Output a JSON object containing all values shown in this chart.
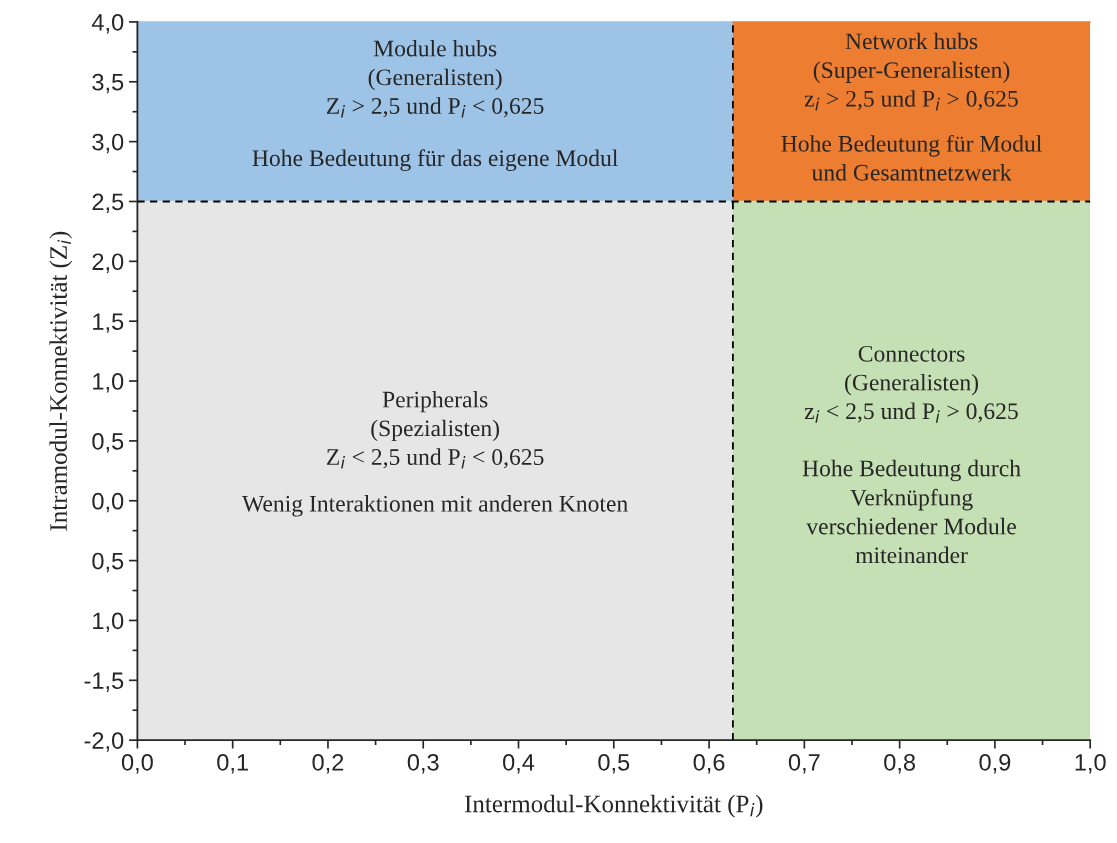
{
  "chart_data": {
    "type": "line",
    "xlabel": "Intermodul-Konnektivität (P$_{i}$)",
    "ylabel": "Intramodul-Konnektivität (Z$_{i}$)",
    "xlim": [
      0,
      1.0
    ],
    "ylim": [
      -2.0,
      4.0
    ],
    "xticks": [
      {
        "value": 0,
        "label": "0,0"
      },
      {
        "value": 0.1,
        "label": "0,1"
      },
      {
        "value": 0.2,
        "label": "0,2"
      },
      {
        "value": 0.3,
        "label": "0,3"
      },
      {
        "value": 0.4,
        "label": "0,4"
      },
      {
        "value": 0.5,
        "label": "0,5"
      },
      {
        "value": 0.6,
        "label": "0,6"
      },
      {
        "value": 0.7,
        "label": "0,7"
      },
      {
        "value": 0.8,
        "label": "0,8"
      },
      {
        "value": 0.9,
        "label": "0,9"
      },
      {
        "value": 1.0,
        "label": "1,0"
      }
    ],
    "yticks": [
      {
        "value": -2.0,
        "label": "-2,0"
      },
      {
        "value": -1.5,
        "label": "-1,5"
      },
      {
        "value": -1.0,
        "label": "1,0"
      },
      {
        "value": -0.5,
        "label": "0,5"
      },
      {
        "value": 0,
        "label": "0,0"
      },
      {
        "value": 0.5,
        "label": "0,5"
      },
      {
        "value": 1.0,
        "label": "1,0"
      },
      {
        "value": 1.5,
        "label": "1,5"
      },
      {
        "value": 2.0,
        "label": "2,0"
      },
      {
        "value": 2.5,
        "label": "2,5"
      },
      {
        "value": 3.0,
        "label": "3,0"
      },
      {
        "value": 3.5,
        "label": "3,5"
      },
      {
        "value": 4.0,
        "label": "4,0"
      }
    ],
    "series": [
      {
        "color": "#9dc3e6",
        "x": [
          0,
          0.625
        ],
        "values": [
          4.0,
          4.0
        ],
        "lower": [
          2.5,
          2.5
        ],
        "upper": [
          4.0,
          4.0
        ]
      },
      {
        "color": "#ed7d31",
        "x": [
          0.625,
          1.0
        ],
        "values": [
          4.0,
          4.0
        ],
        "lower": [
          2.5,
          2.5
        ],
        "upper": [
          4.0,
          4.0
        ]
      },
      {
        "color": "#e7e6e6",
        "x": [
          0,
          0.625
        ],
        "values": [
          2.5,
          2.5
        ],
        "lower": [
          -2.0,
          -2.0
        ],
        "upper": [
          2.5,
          2.5
        ]
      },
      {
        "color": "#c5e0b4",
        "x": [
          0.625,
          1.0
        ],
        "values": [
          2.5,
          2.5
        ],
        "lower": [
          -2.0,
          -2.0
        ],
        "upper": [
          2.5,
          2.5
        ]
      }
    ],
    "ref_lines": [
      {
        "axis": "x",
        "value": 0.625,
        "color": "#000000",
        "line_style": "dashed"
      },
      {
        "axis": "y",
        "value": 2.5,
        "color": "#000000",
        "line_style": "dashed"
      }
    ],
    "annotations": [
      "Module hubs\n(Generalisten)\nZ$_{i}$ > 2,5 und P$_{i}$ < 0,625",
      "Hohe Bedeutung für das eigene Modul",
      "Network hubs\n(Super-Generalisten)\nz$_{i}$ > 2,5 und P$_{i}$ > 0,625",
      "Hohe Bedeutung für Modul\nund Gesamtnetzwerk",
      "Peripherals\n(Spezialisten)\nZ$_{i}$ < 2,5 und P$_{i}$ < 0,625",
      "Wenig Interaktionen mit anderen Knoten",
      "Connectors\n(Generalisten)\nz$_{i}$ < 2,5 und P$_{i}$ > 0,625",
      "Hohe Bedeutung durch\nVerknüpfung\nverschiedener Module\nmiteinander"
    ]
  }
}
